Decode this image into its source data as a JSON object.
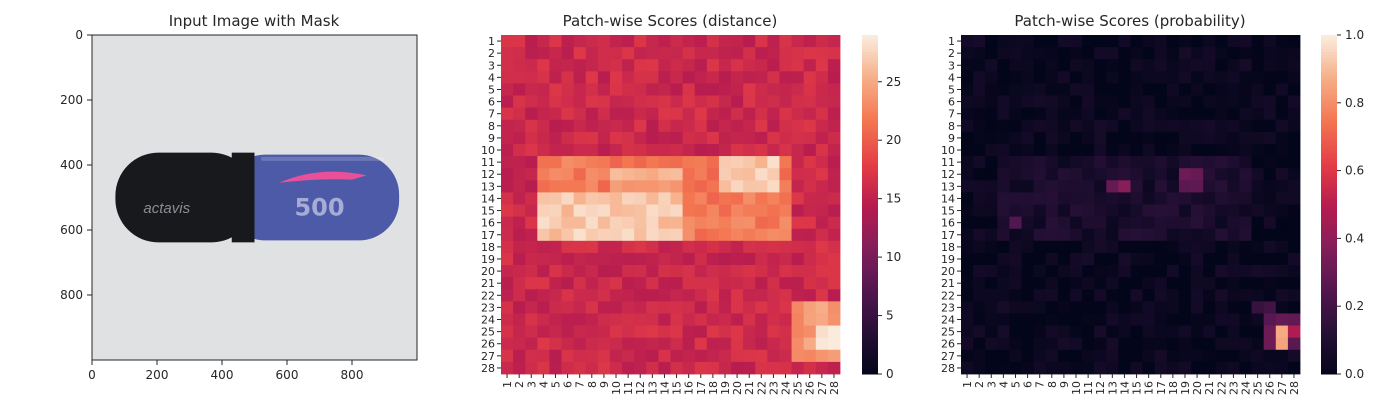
{
  "chart_data": [
    {
      "type": "image",
      "title": "Input Image with Mask",
      "xlim": [
        0,
        1000
      ],
      "ylim": [
        1000,
        0
      ],
      "xticks": [
        0,
        200,
        400,
        600,
        800
      ],
      "yticks": [
        0,
        200,
        400,
        600,
        800
      ],
      "capsule": {
        "left_cap_color": "#17191c",
        "right_body_color": "#4d5aa8",
        "background_color": "#dfe1e3",
        "mask_color": "#e8509a",
        "brand_text": "actavis",
        "print_text": "500"
      }
    },
    {
      "type": "heatmap",
      "title": "Patch-wise Scores (distance)",
      "n": 28,
      "row_labels": [
        "1",
        "2",
        "3",
        "4",
        "5",
        "6",
        "7",
        "8",
        "9",
        "10",
        "11",
        "12",
        "13",
        "14",
        "15",
        "16",
        "17",
        "18",
        "19",
        "20",
        "21",
        "22",
        "23",
        "24",
        "25",
        "26",
        "27",
        "28"
      ],
      "col_labels": [
        "1",
        "2",
        "3",
        "4",
        "5",
        "6",
        "7",
        "8",
        "9",
        "10",
        "11",
        "12",
        "13",
        "14",
        "15",
        "16",
        "17",
        "18",
        "19",
        "20",
        "21",
        "22",
        "23",
        "24",
        "25",
        "26",
        "27",
        "28"
      ],
      "vmin": 0,
      "vmax": 29,
      "colorbar_ticks": [
        0,
        5,
        10,
        15,
        20,
        25
      ],
      "colormap": "rocket",
      "base_value": 16,
      "regions": [
        {
          "rows": [
            11,
            17
          ],
          "cols": [
            4,
            24
          ],
          "value": 22
        },
        {
          "rows": [
            14,
            17
          ],
          "cols": [
            4,
            15
          ],
          "value": 27
        },
        {
          "rows": [
            12,
            14
          ],
          "cols": [
            10,
            15
          ],
          "value": 25
        },
        {
          "rows": [
            11,
            13
          ],
          "cols": [
            19,
            23
          ],
          "value": 27
        },
        {
          "rows": [
            23,
            27
          ],
          "cols": [
            25,
            28
          ],
          "value": 24
        },
        {
          "rows": [
            25,
            26
          ],
          "cols": [
            27,
            28
          ],
          "value": 29
        }
      ]
    },
    {
      "type": "heatmap",
      "title": "Patch-wise Scores (probability)",
      "n": 28,
      "row_labels": [
        "1",
        "2",
        "3",
        "4",
        "5",
        "6",
        "7",
        "8",
        "9",
        "10",
        "11",
        "12",
        "13",
        "14",
        "15",
        "16",
        "17",
        "18",
        "19",
        "20",
        "21",
        "22",
        "23",
        "24",
        "25",
        "26",
        "27",
        "28"
      ],
      "col_labels": [
        "1",
        "2",
        "3",
        "4",
        "5",
        "6",
        "7",
        "8",
        "9",
        "10",
        "11",
        "12",
        "13",
        "14",
        "15",
        "16",
        "17",
        "18",
        "19",
        "20",
        "21",
        "22",
        "23",
        "24",
        "25",
        "26",
        "27",
        "28"
      ],
      "vmin": 0,
      "vmax": 1,
      "colorbar_ticks": [
        "0.0",
        "0.2",
        "0.4",
        "0.6",
        "0.8",
        "1.0"
      ],
      "colormap": "rocket",
      "base_value": 0.02,
      "regions": [
        {
          "rows": [
            11,
            17
          ],
          "cols": [
            4,
            24
          ],
          "value": 0.08
        },
        {
          "rows": [
            13,
            13
          ],
          "cols": [
            13,
            14
          ],
          "value": 0.35
        },
        {
          "rows": [
            16,
            16
          ],
          "cols": [
            5,
            5
          ],
          "value": 0.3
        },
        {
          "rows": [
            12,
            13
          ],
          "cols": [
            19,
            20
          ],
          "value": 0.3
        },
        {
          "rows": [
            23,
            23
          ],
          "cols": [
            25,
            26
          ],
          "value": 0.2
        },
        {
          "rows": [
            24,
            26
          ],
          "cols": [
            26,
            28
          ],
          "value": 0.3
        },
        {
          "rows": [
            25,
            25
          ],
          "cols": [
            27,
            27
          ],
          "value": 0.75
        },
        {
          "rows": [
            25,
            26
          ],
          "cols": [
            27,
            27
          ],
          "value": 0.9
        },
        {
          "rows": [
            25,
            25
          ],
          "cols": [
            28,
            28
          ],
          "value": 0.5
        }
      ]
    }
  ]
}
